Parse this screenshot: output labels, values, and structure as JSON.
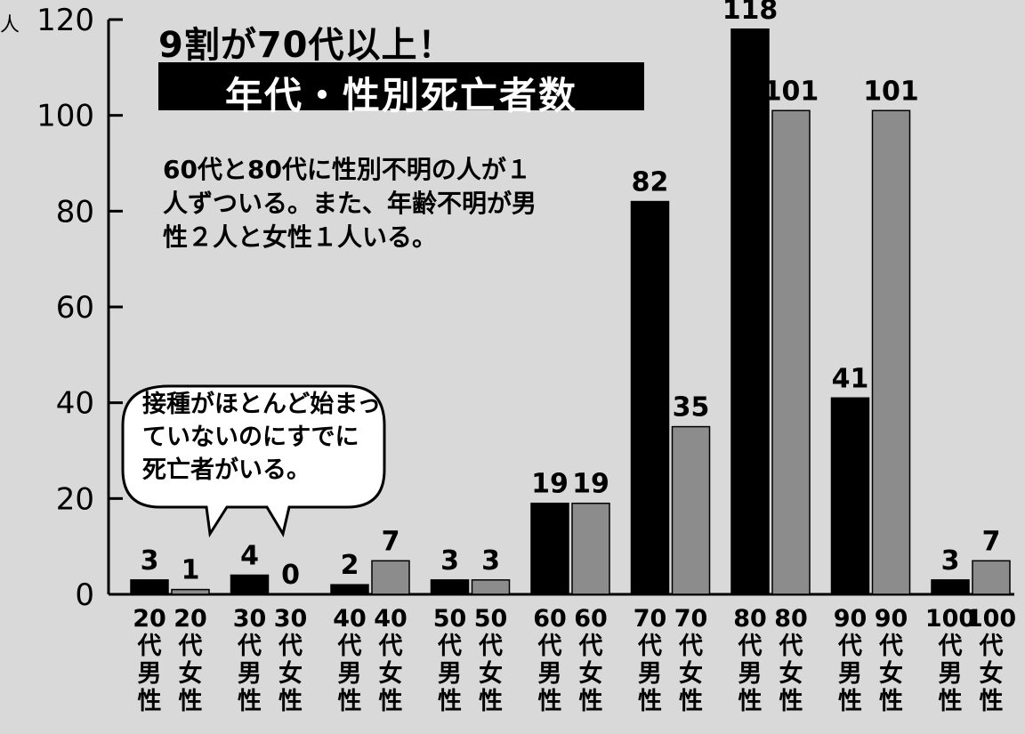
{
  "chart_data": {
    "type": "bar",
    "title": "9割が70代以上！",
    "subtitle": "年代・性別死亡者数",
    "unit": "人",
    "ylim": [
      0,
      120
    ],
    "yticks": [
      "0",
      "20",
      "40",
      "60",
      "80",
      "100",
      "120"
    ],
    "categories": [
      "20代男性",
      "20代女性",
      "30代男性",
      "30代女性",
      "40代男性",
      "40代女性",
      "50代男性",
      "50代女性",
      "60代男性",
      "60代女性",
      "70代男性",
      "70代女性",
      "80代男性",
      "80代女性",
      "90代男性",
      "90代女性",
      "100代男性",
      "100代女性"
    ],
    "values": [
      3,
      1,
      4,
      0,
      2,
      7,
      3,
      3,
      19,
      19,
      82,
      35,
      118,
      101,
      41,
      101,
      3,
      7
    ],
    "value_labels": [
      "3",
      "1",
      "4",
      "0",
      "2",
      "7",
      "3",
      "3",
      "19",
      "19",
      "82",
      "35",
      "118",
      "101",
      "41",
      "101",
      "3",
      "7"
    ],
    "tick_labels": [
      [
        "20",
        "代",
        "男",
        "性"
      ],
      [
        "20",
        "代",
        "女",
        "性"
      ],
      [
        "30",
        "代",
        "男",
        "性"
      ],
      [
        "30",
        "代",
        "女",
        "性"
      ],
      [
        "40",
        "代",
        "男",
        "性"
      ],
      [
        "40",
        "代",
        "女",
        "性"
      ],
      [
        "50",
        "代",
        "男",
        "性"
      ],
      [
        "50",
        "代",
        "女",
        "性"
      ],
      [
        "60",
        "代",
        "男",
        "性"
      ],
      [
        "60",
        "代",
        "女",
        "性"
      ],
      [
        "70",
        "代",
        "男",
        "性"
      ],
      [
        "70",
        "代",
        "女",
        "性"
      ],
      [
        "80",
        "代",
        "男",
        "性"
      ],
      [
        "80",
        "代",
        "女",
        "性"
      ],
      [
        "90",
        "代",
        "男",
        "性"
      ],
      [
        "90",
        "代",
        "女",
        "性"
      ],
      [
        "100",
        "代",
        "男",
        "性"
      ],
      [
        "100",
        "代",
        "女",
        "性"
      ]
    ],
    "bar_colors": {
      "male": "#000000",
      "female": "#8c8c8c"
    },
    "annotations": {
      "note": "60代と80代に性別不明の人が１人ずついる。また、年齢不明が男性２人と女性１人いる。",
      "bubble": "接種がほとんど始まっていないのにすでに死亡者がいる。"
    },
    "grid": false,
    "legend": "none"
  }
}
